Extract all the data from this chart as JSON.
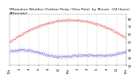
{
  "title": "Milwaukee Weather Outdoor Temp / Dew Point  by Minute  (24 Hours) (Alternate)",
  "background_color": "#ffffff",
  "plot_bg_color": "#ffffff",
  "grid_color": "#aaaaaa",
  "temp_color": "#dd0000",
  "dew_color": "#0000cc",
  "ylim": [
    20,
    85
  ],
  "xlim": [
    0,
    1439
  ],
  "yticks": [
    20,
    30,
    40,
    50,
    60,
    70,
    80
  ],
  "num_points": 1440,
  "temp_peak": 78,
  "temp_start": 50,
  "temp_end": 55,
  "dew_base": 30,
  "dew_range": 12,
  "title_color": "#000000",
  "title_fontsize": 3.2,
  "tick_fontsize": 2.8,
  "tick_color": "#000000",
  "num_vgrid": 13,
  "dot_size": 0.15
}
